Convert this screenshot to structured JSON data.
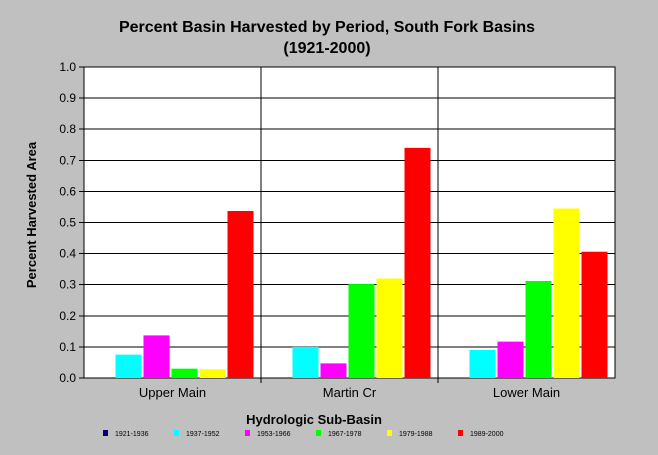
{
  "chart_data": {
    "type": "bar",
    "title": "Percent Basin Harvested by Period, South Fork Basins",
    "subtitle": "(1921-2000)",
    "xlabel": "Hydrologic Sub-Basin",
    "ylabel": "Percent Harvested Area",
    "ylim": [
      0,
      1.0
    ],
    "yticks": [
      "0.0",
      "0.1",
      "0.2",
      "0.3",
      "0.4",
      "0.5",
      "0.6",
      "0.7",
      "0.8",
      "0.9",
      "1.0"
    ],
    "categories": [
      "Upper Main",
      "Martin Cr",
      "Lower Main"
    ],
    "legend_position": "bottom",
    "grid": true,
    "series": [
      {
        "name": "1921-1936",
        "color": "#000080",
        "values": [
          0,
          0,
          0
        ]
      },
      {
        "name": "1937-1952",
        "color": "#00ffff",
        "values": [
          0.075,
          0.1,
          0.09
        ]
      },
      {
        "name": "1953-1966",
        "color": "#ff00ff",
        "values": [
          0.137,
          0.047,
          0.117
        ]
      },
      {
        "name": "1967-1978",
        "color": "#00ff00",
        "values": [
          0.03,
          0.302,
          0.312
        ]
      },
      {
        "name": "1979-1988",
        "color": "#ffff00",
        "values": [
          0.028,
          0.32,
          0.545
        ]
      },
      {
        "name": "1989-2000",
        "color": "#ff0000",
        "values": [
          0.537,
          0.74,
          0.406
        ]
      }
    ]
  }
}
